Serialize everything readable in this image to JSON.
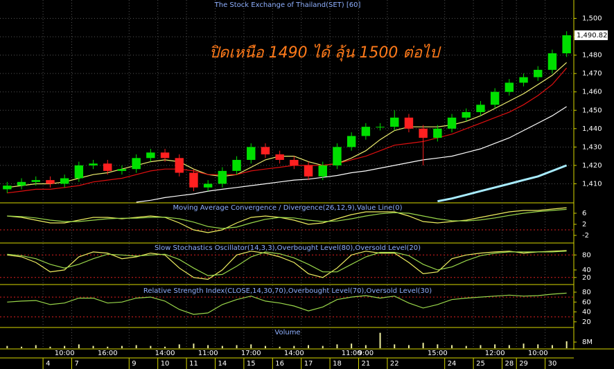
{
  "chart_data": [
    {
      "type": "candlestick",
      "title": "The Stock Exchange of Thailand(SET) [60]",
      "annotation": "ปิดเหนือ 1490 ได้ ลุ้น 1500 ต่อไป",
      "up_color": "#00e000",
      "down_color": "#ff2020",
      "open": [
        1407,
        1409,
        1411,
        1412,
        1410,
        1413,
        1420,
        1421,
        1417,
        1418,
        1424,
        1427,
        1424,
        1416,
        1408,
        1410,
        1417,
        1423,
        1430,
        1426,
        1423,
        1420,
        1414,
        1420,
        1430,
        1436,
        1441,
        1441,
        1446,
        1440,
        1435,
        1440,
        1446,
        1449,
        1453,
        1460,
        1465,
        1468,
        1472,
        1481
      ],
      "high": [
        1411,
        1413,
        1414,
        1414,
        1415,
        1422,
        1423,
        1423,
        1420,
        1426,
        1429,
        1429,
        1426,
        1418,
        1412,
        1419,
        1425,
        1432,
        1432,
        1428,
        1425,
        1422,
        1422,
        1432,
        1438,
        1443,
        1443,
        1450,
        1448,
        1442,
        1442,
        1448,
        1451,
        1455,
        1462,
        1467,
        1470,
        1474,
        1483,
        1493
      ],
      "low": [
        1405,
        1407,
        1409,
        1408,
        1408,
        1411,
        1418,
        1415,
        1415,
        1416,
        1422,
        1422,
        1414,
        1406,
        1406,
        1408,
        1415,
        1421,
        1424,
        1421,
        1418,
        1412,
        1412,
        1418,
        1428,
        1434,
        1439,
        1439,
        1438,
        1420,
        1433,
        1438,
        1444,
        1447,
        1451,
        1458,
        1463,
        1466,
        1470,
        1479
      ],
      "close": [
        1409,
        1411,
        1412,
        1410,
        1413,
        1420,
        1421,
        1417,
        1418,
        1424,
        1427,
        1424,
        1416,
        1408,
        1410,
        1417,
        1423,
        1430,
        1426,
        1423,
        1420,
        1414,
        1420,
        1430,
        1436,
        1441,
        1441,
        1446,
        1440,
        1435,
        1440,
        1446,
        1449,
        1453,
        1460,
        1465,
        1468,
        1472,
        1481,
        1490.82
      ],
      "series": [
        {
          "color": "#f0f070",
          "values": [
            1408,
            1409,
            1410,
            1410,
            1411,
            1413,
            1415,
            1416,
            1418,
            1420,
            1422,
            1423,
            1422,
            1418,
            1415,
            1414,
            1415,
            1419,
            1423,
            1425,
            1425,
            1422,
            1420,
            1421,
            1424,
            1428,
            1434,
            1439,
            1441,
            1441,
            1441,
            1442,
            1444,
            1447,
            1451,
            1455,
            1459,
            1464,
            1469,
            1476
          ]
        },
        {
          "color": "#e01010",
          "values": [
            1405,
            1406,
            1407,
            1407,
            1408,
            1409,
            1411,
            1412,
            1413,
            1415,
            1417,
            1418,
            1418,
            1417,
            1415,
            1415,
            1415,
            1417,
            1418,
            1419,
            1420,
            1420,
            1420,
            1421,
            1423,
            1425,
            1428,
            1431,
            1432,
            1433,
            1435,
            1437,
            1440,
            1443,
            1446,
            1449,
            1453,
            1458,
            1464,
            1473
          ]
        },
        {
          "color": "#ffffff",
          "values": [
            null,
            null,
            null,
            null,
            null,
            null,
            null,
            null,
            null,
            1400,
            1401,
            1402.5,
            1403.5,
            1404.5,
            1406,
            1407,
            1408,
            1409,
            1410,
            1411,
            1412,
            1412.5,
            1413.5,
            1414.5,
            1416,
            1417,
            1418.5,
            1420,
            1421.5,
            1423,
            1424,
            1425,
            1427,
            1429,
            1432,
            1435,
            1439,
            1443,
            1447,
            1452
          ]
        },
        {
          "color": "#a8ecff",
          "values": [
            null,
            null,
            null,
            null,
            null,
            null,
            null,
            null,
            null,
            null,
            null,
            null,
            null,
            null,
            null,
            null,
            null,
            null,
            null,
            null,
            null,
            null,
            null,
            null,
            null,
            null,
            null,
            null,
            null,
            null,
            1400.5,
            1402,
            1404,
            1406,
            1408,
            1410,
            1412,
            1414,
            1417,
            1420
          ]
        }
      ],
      "last_value": {
        "value": 1490.82,
        "label": "1,490.82"
      },
      "ylim": [
        1400,
        1510
      ],
      "yticks": [
        {
          "value": 1410,
          "label": "1,410"
        },
        {
          "value": 1420,
          "label": "1,420"
        },
        {
          "value": 1430,
          "label": "1,430"
        },
        {
          "value": 1440,
          "label": "1,440"
        },
        {
          "value": 1450,
          "label": "1,450"
        },
        {
          "value": 1460,
          "label": "1,460"
        },
        {
          "value": 1470,
          "label": "1,470"
        },
        {
          "value": 1480,
          "label": "1,480"
        },
        {
          "value": 1490,
          "label": "1,490"
        },
        {
          "value": 1500,
          "label": "1,500"
        }
      ],
      "grid": true
    },
    {
      "type": "line",
      "title": "Moving Average Convergence / Divergence(26,12,9),Value Line(0)",
      "series": [
        {
          "color": "#f0f060",
          "values": [
            5,
            4.5,
            3.5,
            2.5,
            2.5,
            3.5,
            4.5,
            4.5,
            4,
            4.5,
            5,
            4.5,
            2.5,
            0,
            -1,
            0,
            2.5,
            4.5,
            5,
            4.5,
            3.5,
            2,
            2.5,
            4,
            5.5,
            6.5,
            6.5,
            6.5,
            5,
            3,
            2.5,
            3,
            3.5,
            4.5,
            5.5,
            6.5,
            7,
            7,
            7.5,
            8
          ]
        },
        {
          "color": "#9ad84a",
          "values": [
            5,
            4.8,
            4.3,
            3.5,
            3,
            3,
            3.5,
            4,
            4.2,
            4.2,
            4.5,
            4.6,
            4,
            2.8,
            1.2,
            0.5,
            1,
            2.5,
            3.8,
            4.5,
            4.3,
            3.5,
            3,
            3.2,
            4,
            5,
            5.8,
            6.2,
            6,
            5,
            4,
            3.3,
            3.2,
            3.6,
            4.3,
            5.2,
            6,
            6.6,
            7,
            7.4
          ]
        }
      ],
      "reference_lines": [
        0
      ],
      "reference_color": "#e02020",
      "ylim": [
        -4.5,
        9.5
      ],
      "yticks": [
        6,
        2,
        -2
      ]
    },
    {
      "type": "line",
      "title": "Slow Stochastics Oscillator(14,3,3),Overbought Level(80),Oversold Level(20)",
      "series": [
        {
          "color": "#f0f060",
          "values": [
            80,
            75,
            60,
            35,
            40,
            75,
            88,
            85,
            70,
            75,
            85,
            80,
            45,
            20,
            15,
            40,
            80,
            90,
            85,
            75,
            60,
            30,
            20,
            45,
            80,
            90,
            85,
            85,
            60,
            30,
            35,
            70,
            80,
            85,
            88,
            90,
            85,
            88,
            90,
            92
          ]
        },
        {
          "color": "#9ad84a",
          "values": [
            82,
            78,
            70,
            55,
            45,
            55,
            70,
            82,
            80,
            77,
            80,
            82,
            68,
            45,
            25,
            28,
            50,
            75,
            88,
            83,
            72,
            55,
            35,
            35,
            55,
            75,
            87,
            87,
            78,
            55,
            40,
            48,
            65,
            78,
            85,
            88,
            88,
            88,
            88,
            90
          ]
        }
      ],
      "reference_lines": [
        80,
        20
      ],
      "reference_color": "#e02020",
      "ylim": [
        3,
        110
      ],
      "yticks": [
        80,
        40,
        20
      ]
    },
    {
      "type": "line",
      "title": "Relative Strength Index(CLOSE,14,30,70),Overbought Level(70),Oversold Level(30)",
      "series": [
        {
          "color": "#9ad84a",
          "values": [
            60,
            62,
            63,
            55,
            58,
            68,
            68,
            58,
            60,
            68,
            70,
            62,
            45,
            35,
            38,
            55,
            65,
            72,
            62,
            58,
            52,
            42,
            50,
            65,
            70,
            73,
            68,
            72,
            58,
            48,
            55,
            65,
            68,
            70,
            72,
            74,
            72,
            73,
            76,
            78
          ]
        }
      ],
      "reference_lines": [
        70,
        30
      ],
      "reference_color": "#e02020",
      "ylim": [
        10,
        94
      ],
      "yticks": [
        80,
        60,
        40,
        20
      ]
    },
    {
      "type": "bar",
      "title": "Volume",
      "color": "#f0f0a0",
      "values": [
        3,
        2,
        4,
        2,
        3,
        5,
        3,
        2,
        3,
        4,
        3,
        2,
        5,
        6,
        4,
        3,
        4,
        5,
        3,
        2,
        3,
        4,
        3,
        5,
        6,
        4,
        20,
        5,
        4,
        7,
        5,
        4,
        3,
        4,
        5,
        4,
        6,
        5,
        4,
        9
      ],
      "ylim": [
        0,
        26
      ],
      "yticks": [
        {
          "value": 8,
          "label": "8M"
        }
      ],
      "categories": [
        null,
        null,
        null,
        "4",
        null,
        "7",
        null,
        null,
        null,
        "9",
        null,
        "10",
        null,
        "11",
        null,
        "14",
        null,
        "15",
        null,
        "16",
        null,
        "17",
        null,
        "18",
        null,
        "21",
        null,
        "22",
        null,
        null,
        null,
        "24",
        null,
        "25",
        null,
        "28",
        "29",
        null,
        "30",
        null
      ],
      "time_categories": [
        null,
        null,
        null,
        null,
        "10:00",
        null,
        null,
        "16:00",
        null,
        null,
        null,
        "14:00",
        null,
        null,
        "11:00",
        null,
        null,
        "17:00",
        null,
        null,
        "14:00",
        null,
        null,
        null,
        "11:00",
        "9:00",
        null,
        null,
        null,
        null,
        "15:00",
        null,
        null,
        null,
        "12:00",
        null,
        null,
        "10:00",
        null,
        null
      ]
    }
  ]
}
